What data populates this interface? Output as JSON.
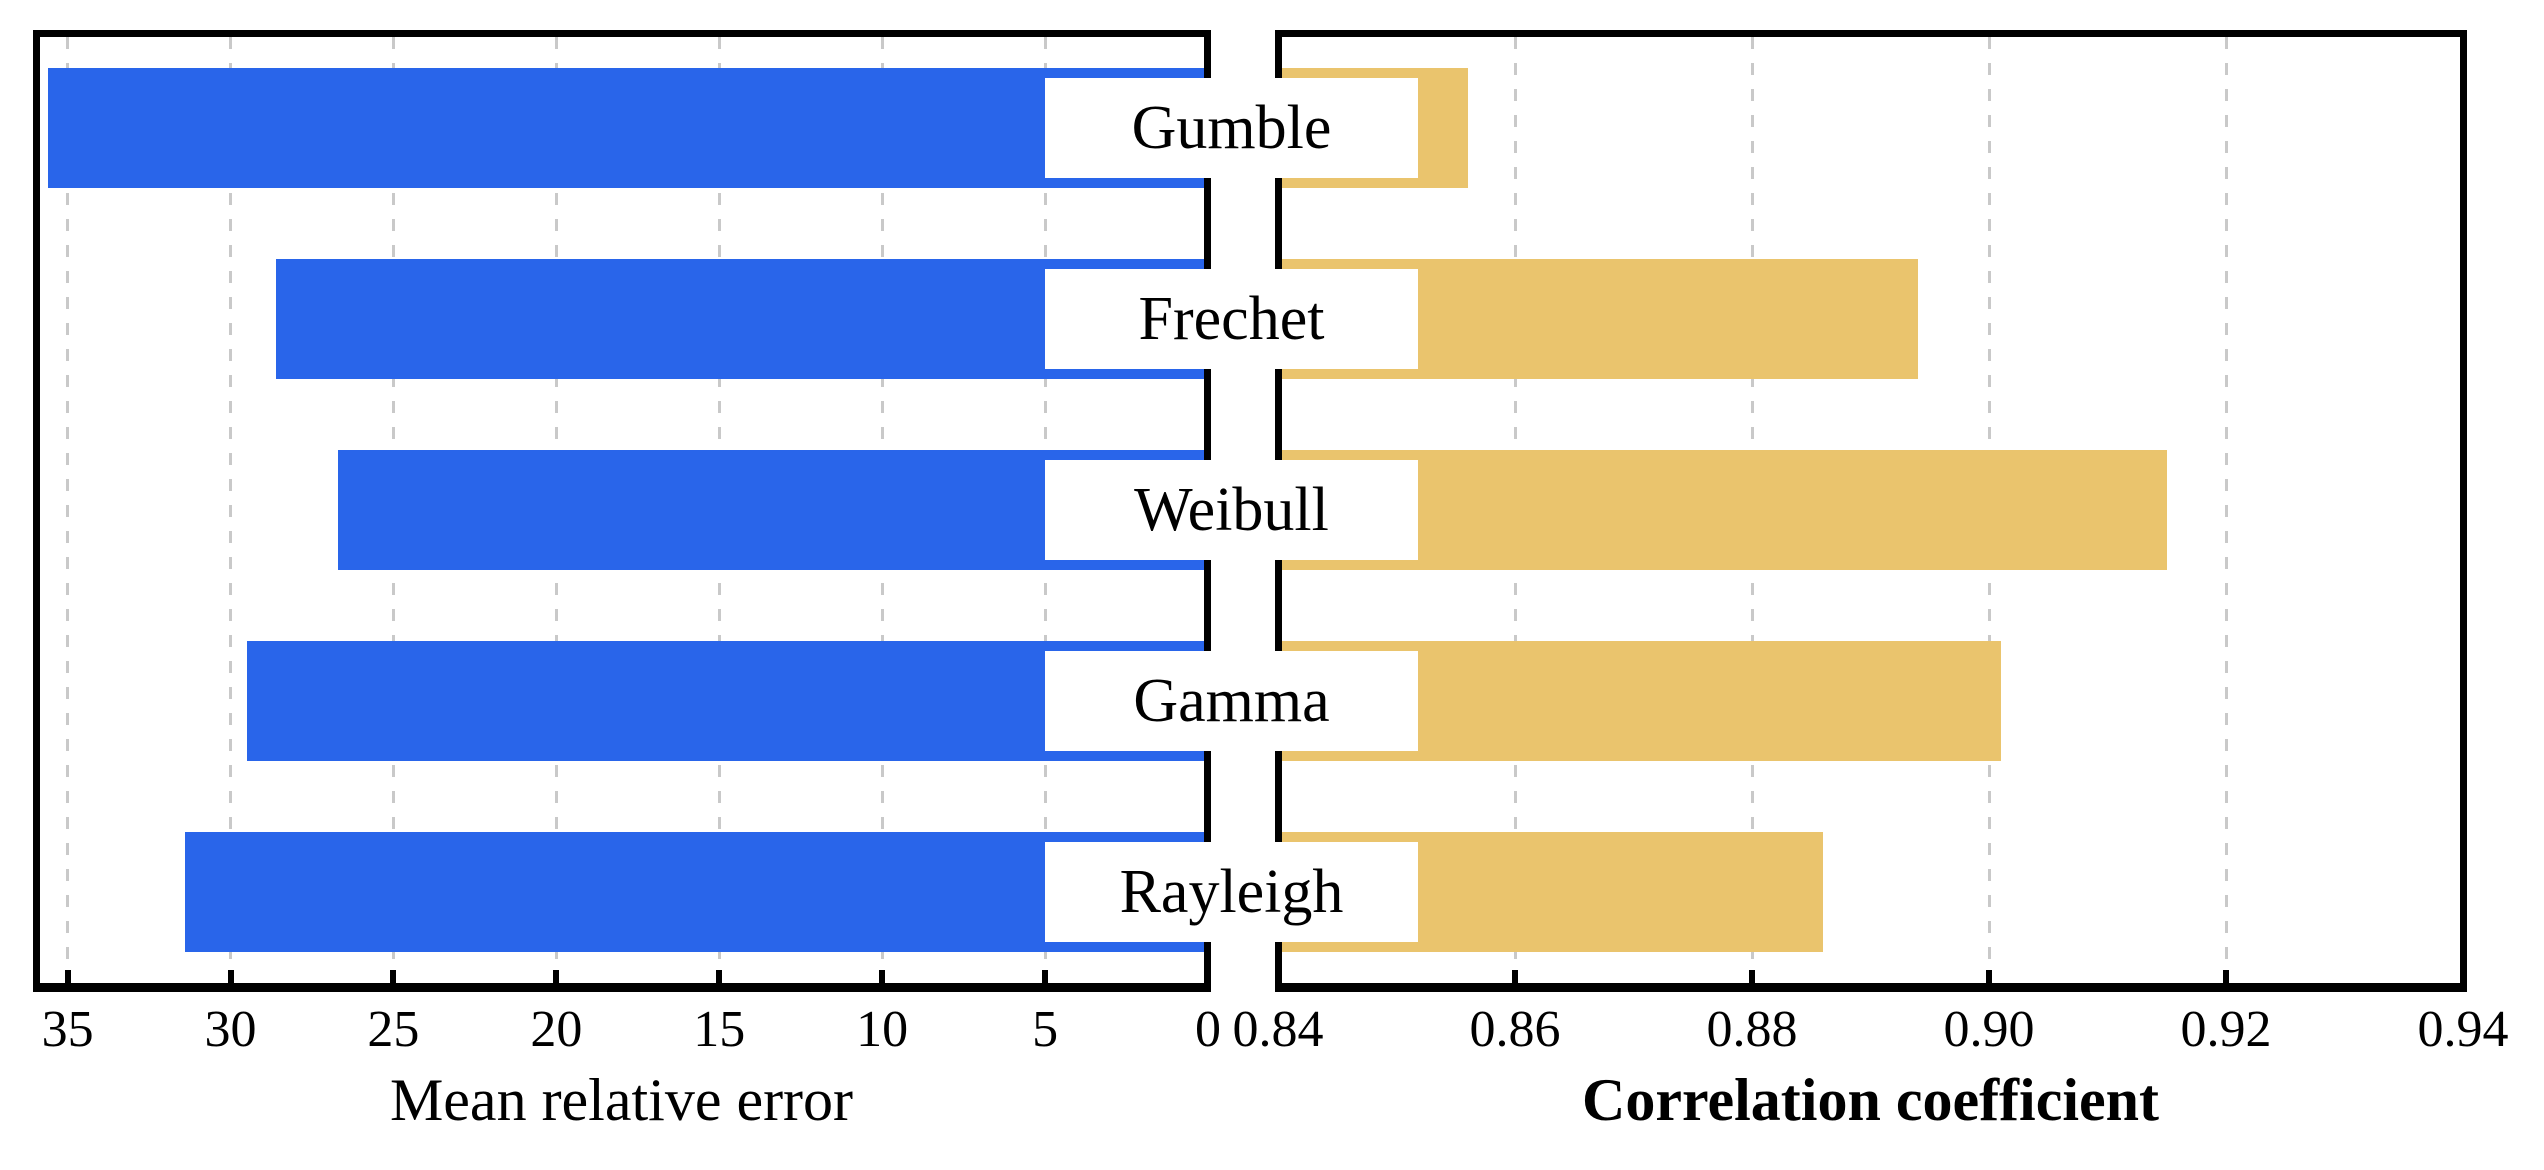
{
  "chart_data": {
    "type": "bar",
    "orientation": "horizontal",
    "title": "",
    "categories": [
      "Gumble",
      "Frechet",
      "Weibull",
      "Gamma",
      "Rayleigh"
    ],
    "legend_position": "none",
    "grid": "vertical-dashed",
    "panels": [
      {
        "side": "left",
        "xlabel": "Mean relative error",
        "xlabel_bold": false,
        "axis_direction": "reversed",
        "xlim": [
          36,
          0
        ],
        "ticks": [
          {
            "v": 35,
            "label": "35"
          },
          {
            "v": 30,
            "label": "30"
          },
          {
            "v": 25,
            "label": "25"
          },
          {
            "v": 20,
            "label": "20"
          },
          {
            "v": 15,
            "label": "15"
          },
          {
            "v": 10,
            "label": "10"
          },
          {
            "v": 5,
            "label": "5"
          },
          {
            "v": 0,
            "label": "0"
          }
        ],
        "values": [
          35.6,
          28.6,
          26.7,
          29.5,
          31.4
        ],
        "bar_color": "#2965EA"
      },
      {
        "side": "right",
        "xlabel": "Correlation coefficient",
        "xlabel_bold": true,
        "axis_direction": "normal",
        "xlim": [
          0.84,
          0.94
        ],
        "ticks": [
          {
            "v": 0.84,
            "label": "0.84"
          },
          {
            "v": 0.86,
            "label": "0.86"
          },
          {
            "v": 0.88,
            "label": "0.88"
          },
          {
            "v": 0.9,
            "label": "0.90"
          },
          {
            "v": 0.92,
            "label": "0.92"
          },
          {
            "v": 0.94,
            "label": "0.94"
          }
        ],
        "values": [
          0.856,
          0.894,
          0.915,
          0.901,
          0.886
        ],
        "bar_color": "#EAC46D"
      }
    ],
    "colors": {
      "gridline": "#c9c9c9",
      "spine": "#000000",
      "label_box_bg": "#ffffff",
      "text": "#000000"
    }
  }
}
